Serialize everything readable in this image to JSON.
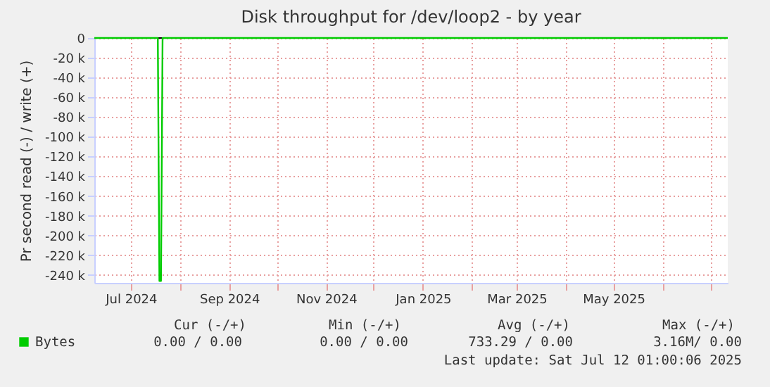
{
  "chart_data": {
    "type": "line",
    "title": "Disk throughput for /dev/loop2 - by year",
    "ylabel": "Pr second read (-) / write (+)",
    "x": [
      "2024-06-08",
      "2024-07-18",
      "2024-07-19",
      "2024-07-20",
      "2024-07-21",
      "2025-07-12"
    ],
    "series": [
      {
        "name": "Bytes",
        "color": "#00cc00",
        "values": [
          0,
          0,
          -246000,
          -246000,
          0,
          0
        ]
      }
    ],
    "xlim": [
      "2024-06-08",
      "2025-07-12"
    ],
    "xticks": [
      {
        "value": "2024-07-01",
        "label": "Jul 2024"
      },
      {
        "value": "2024-08-01",
        "label": null
      },
      {
        "value": "2024-09-01",
        "label": "Sep 2024"
      },
      {
        "value": "2024-10-01",
        "label": null
      },
      {
        "value": "2024-11-01",
        "label": "Nov 2024"
      },
      {
        "value": "2024-12-01",
        "label": null
      },
      {
        "value": "2025-01-01",
        "label": "Jan 2025"
      },
      {
        "value": "2025-02-01",
        "label": null
      },
      {
        "value": "2025-03-01",
        "label": "Mar 2025"
      },
      {
        "value": "2025-04-01",
        "label": null
      },
      {
        "value": "2025-05-01",
        "label": "May 2025"
      },
      {
        "value": "2025-06-01",
        "label": null
      },
      {
        "value": "2025-07-01",
        "label": null
      }
    ],
    "ylim": [
      -248000,
      0
    ],
    "yticks": [
      0,
      {
        "value": -20000,
        "label": "-20 k"
      },
      {
        "value": -40000,
        "label": "-40 k"
      },
      {
        "value": -60000,
        "label": "-60 k"
      },
      {
        "value": -80000,
        "label": "-80 k"
      },
      {
        "value": -100000,
        "label": "-100 k"
      },
      {
        "value": -120000,
        "label": "-120 k"
      },
      {
        "value": -140000,
        "label": "-140 k"
      },
      {
        "value": -160000,
        "label": "-160 k"
      },
      {
        "value": -180000,
        "label": "-180 k"
      },
      {
        "value": -200000,
        "label": "-200 k"
      },
      {
        "value": -220000,
        "label": "-220 k"
      },
      {
        "value": -240000,
        "label": "-240 k"
      }
    ],
    "ref_lines": [
      {
        "axis": "y",
        "value": 0,
        "color": "#000000"
      }
    ],
    "grid": true,
    "legend": "bottom",
    "marker": "none",
    "line_style": "solid",
    "annotations": [
      "Cur (-/+)",
      "Min (-/+)",
      "Avg (-/+)",
      "Max (-/+)",
      "0.00 /   0.00",
      "0.00 /   0.00",
      "733.29 /   0.00",
      "3.16M/   0.00",
      "Last update: Sat Jul 12 01:00:06 2025"
    ]
  }
}
